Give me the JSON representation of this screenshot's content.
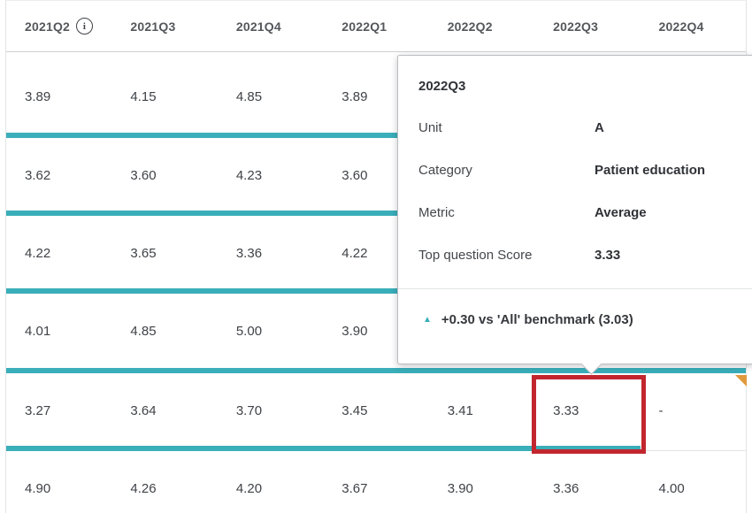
{
  "colors": {
    "teal": "#3AAEB9",
    "highlight_red": "#C2262E",
    "flag_orange": "#E09A3C",
    "header_text": "#54575B",
    "cell_text": "#3F4247"
  },
  "icons": {
    "info": "i",
    "benchmark_up": "▲"
  },
  "table": {
    "columns": [
      {
        "label": "2021Q2",
        "has_info_icon": true
      },
      {
        "label": "2021Q3"
      },
      {
        "label": "2021Q4"
      },
      {
        "label": "2022Q1"
      },
      {
        "label": "2022Q2"
      },
      {
        "label": "2022Q3"
      },
      {
        "label": "2022Q4"
      }
    ],
    "rows": [
      {
        "cells": [
          {
            "v": "3.89"
          },
          {
            "v": "4.15"
          },
          {
            "v": "4.85"
          },
          {
            "v": "3.89"
          },
          {
            "v": ""
          },
          {
            "v": ""
          },
          {
            "v": ""
          }
        ]
      },
      {
        "cells": [
          {
            "v": "3.62"
          },
          {
            "v": "3.60"
          },
          {
            "v": "4.23"
          },
          {
            "v": "3.60"
          },
          {
            "v": ""
          },
          {
            "v": ""
          },
          {
            "v": ""
          }
        ]
      },
      {
        "cells": [
          {
            "v": "4.22"
          },
          {
            "v": "3.65"
          },
          {
            "v": "3.36"
          },
          {
            "v": "4.22"
          },
          {
            "v": ""
          },
          {
            "v": ""
          },
          {
            "v": ""
          }
        ]
      },
      {
        "cells": [
          {
            "v": "4.01"
          },
          {
            "v": "4.85"
          },
          {
            "v": "5.00"
          },
          {
            "v": "3.90"
          },
          {
            "v": ""
          },
          {
            "v": ""
          },
          {
            "v": ""
          }
        ]
      },
      {
        "cells": [
          {
            "v": "3.27"
          },
          {
            "v": "3.64"
          },
          {
            "v": "3.70"
          },
          {
            "v": "3.45"
          },
          {
            "v": "3.41"
          },
          {
            "v": "3.33"
          },
          {
            "v": "-",
            "bar": "gray"
          }
        ]
      },
      {
        "cells": [
          {
            "v": "4.90"
          },
          {
            "v": "4.26"
          },
          {
            "v": "4.20"
          },
          {
            "v": "3.67"
          },
          {
            "v": "3.90"
          },
          {
            "v": "3.36"
          },
          {
            "v": "4.00"
          }
        ]
      }
    ]
  },
  "tooltip": {
    "title": "2022Q3",
    "fields": [
      {
        "label": "Unit",
        "value": "A"
      },
      {
        "label": "Category",
        "value": "Patient education"
      },
      {
        "label": "Metric",
        "value": "Average"
      },
      {
        "label": "Top question Score",
        "value": "3.33"
      }
    ],
    "benchmark": {
      "text": "+0.30 vs 'All' benchmark (3.03)"
    }
  }
}
